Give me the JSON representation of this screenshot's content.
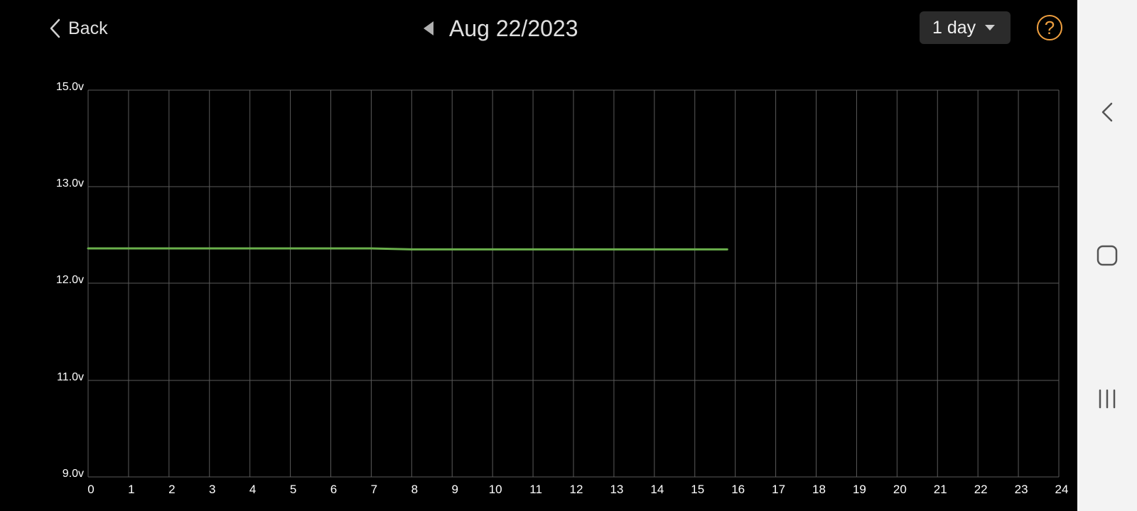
{
  "header": {
    "back_label": "Back",
    "date": "Aug 22/2023",
    "range": "1 day",
    "icons": {
      "back": "chevron-left-icon",
      "prev": "triangle-left-icon",
      "caret": "caret-down-icon",
      "help": "question-circle-icon"
    }
  },
  "colors": {
    "background": "#000000",
    "grid": "#5a5a5a",
    "series": "#6ab04c",
    "help_accent": "#f0a040"
  },
  "chart_data": {
    "type": "line",
    "title": "",
    "xlabel": "",
    "ylabel": "",
    "xlim": [
      0,
      24
    ],
    "ylim": [
      9.0,
      15.0
    ],
    "x_ticks": [
      0,
      1,
      2,
      3,
      4,
      5,
      6,
      7,
      8,
      9,
      10,
      11,
      12,
      13,
      14,
      15,
      16,
      17,
      18,
      19,
      20,
      21,
      22,
      23,
      24
    ],
    "x_tick_labels": [
      "0",
      "1",
      "2",
      "3",
      "4",
      "5",
      "6",
      "7",
      "8",
      "9",
      "10",
      "11",
      "12",
      "13",
      "14",
      "15",
      "16",
      "17",
      "18",
      "19",
      "20",
      "21",
      "22",
      "23",
      "24"
    ],
    "y_tick_labels": [
      {
        "value": 15.0,
        "label": "15.0v"
      },
      {
        "value": 13.0,
        "label": "13.0v"
      },
      {
        "value": 12.0,
        "label": "12.0v"
      },
      {
        "value": 11.0,
        "label": "11.0v"
      },
      {
        "value": 9.0,
        "label": "9.0v"
      }
    ],
    "grid": true,
    "series": [
      {
        "x": [
          0,
          1,
          2,
          3,
          4,
          5,
          6,
          7,
          8,
          9,
          10,
          11,
          12,
          13,
          14,
          15,
          15.8
        ],
        "values": [
          12.36,
          12.36,
          12.36,
          12.36,
          12.36,
          12.36,
          12.36,
          12.36,
          12.35,
          12.35,
          12.35,
          12.35,
          12.35,
          12.35,
          12.35,
          12.35,
          12.35
        ]
      }
    ]
  },
  "navbar": {
    "icons": [
      "back-nav-icon",
      "home-nav-icon",
      "recents-nav-icon"
    ]
  }
}
